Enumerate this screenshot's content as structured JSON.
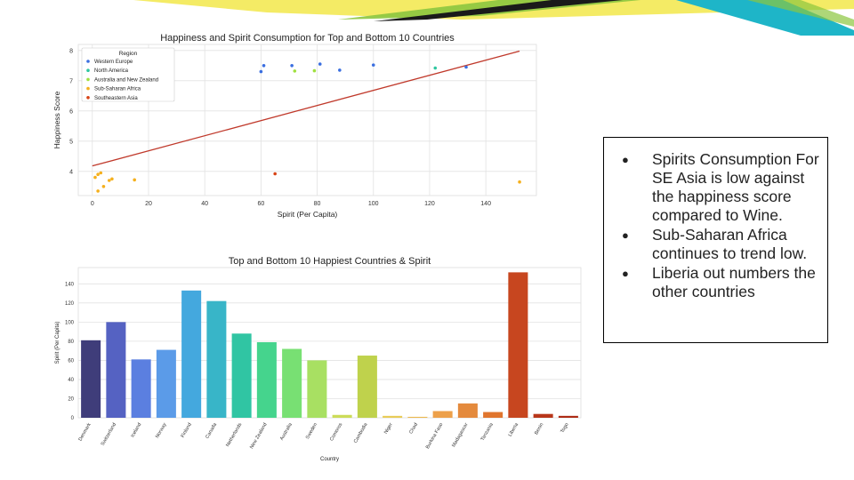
{
  "slide": {
    "bullets": [
      "Spirits Consumption For SE Asia is low against the happiness score compared to Wine.",
      "Sub-Saharan Africa continues to trend low.",
      "Liberia out numbers the other countries"
    ]
  },
  "colors": {
    "banner_yellow": "#f2e84a",
    "banner_green": "#8cc63f",
    "banner_teal": "#1eb5c8",
    "banner_dark": "#1a1a1a",
    "regression_line": "#c0392b"
  },
  "chart_data": [
    {
      "type": "scatter",
      "title": "Happiness and Spirit Consumption for Top and Bottom 10 Countries",
      "xlabel": "Spirit (Per Capita)",
      "ylabel": "Happiness Score",
      "xlim": [
        -5,
        158
      ],
      "ylim": [
        3.2,
        8.2
      ],
      "xticks": [
        0,
        20,
        40,
        60,
        80,
        100,
        120,
        140
      ],
      "yticks": [
        4,
        5,
        6,
        7,
        8
      ],
      "grid": true,
      "legend_title": "Region",
      "legend_position": "top-left",
      "series": [
        {
          "name": "Western Europe",
          "color": "#3b6fe0",
          "points": [
            [
              60,
              7.3
            ],
            [
              61,
              7.5
            ],
            [
              71,
              7.5
            ],
            [
              81,
              7.55
            ],
            [
              88,
              7.35
            ],
            [
              100,
              7.52
            ],
            [
              133,
              7.45
            ]
          ]
        },
        {
          "name": "North America",
          "color": "#2fc7a0",
          "points": [
            [
              122,
              7.42
            ]
          ]
        },
        {
          "name": "Australia and New Zealand",
          "color": "#a0e040",
          "points": [
            [
              72,
              7.32
            ],
            [
              79,
              7.33
            ]
          ]
        },
        {
          "name": "Sub-Saharan Africa",
          "color": "#f5b01d",
          "points": [
            [
              1,
              3.8
            ],
            [
              2,
              3.35
            ],
            [
              2,
              3.9
            ],
            [
              3,
              3.95
            ],
            [
              4,
              3.5
            ],
            [
              6,
              3.7
            ],
            [
              7,
              3.75
            ],
            [
              15,
              3.72
            ],
            [
              152,
              3.65
            ]
          ]
        },
        {
          "name": "Southeastern Asia",
          "color": "#d84315",
          "points": [
            [
              65,
              3.92
            ]
          ]
        }
      ],
      "regression_line": [
        [
          0,
          4.18
        ],
        [
          152,
          7.98
        ]
      ]
    },
    {
      "type": "bar",
      "title": "Top and Bottom 10 Happiest Countries & Spirit",
      "xlabel": "Country",
      "ylabel": "Spirit (Per Capita)",
      "ylim": [
        0,
        157
      ],
      "yticks": [
        0,
        20,
        40,
        60,
        80,
        100,
        120,
        140
      ],
      "grid": true,
      "categories": [
        "Denmark",
        "Switzerland",
        "Iceland",
        "Norway",
        "Finland",
        "Canada",
        "Netherlands",
        "New Zealand",
        "Australia",
        "Sweden",
        "Comoros",
        "Cambodia",
        "Niger",
        "Chad",
        "Burkina Faso",
        "Madagascar",
        "Tanzania",
        "Liberia",
        "Benin",
        "Togo"
      ],
      "values": [
        81,
        100,
        61,
        71,
        133,
        122,
        88,
        79,
        72,
        60,
        3,
        65,
        2,
        1,
        7,
        15,
        6,
        152,
        4,
        2
      ],
      "colors": [
        "#3f3d7a",
        "#5562c2",
        "#5b7fe0",
        "#5b9be8",
        "#44a8de",
        "#38b5c8",
        "#30c5a3",
        "#45d48d",
        "#78e073",
        "#a8e062",
        "#ccdc58",
        "#bfd24c",
        "#e8cc58",
        "#ebb850",
        "#eda04a",
        "#e48a3d",
        "#e0752e",
        "#c7461f",
        "#b8361a",
        "#ad2c16"
      ]
    }
  ]
}
